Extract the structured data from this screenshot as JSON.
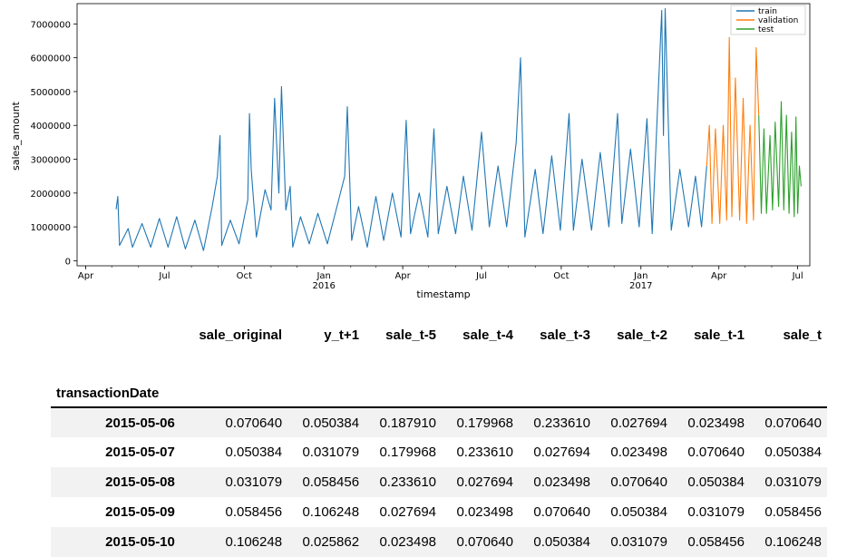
{
  "chart_data": {
    "type": "line",
    "title": "",
    "xlabel": "timestamp",
    "ylabel": "sales_amount",
    "ylim": [
      -150000,
      7600000
    ],
    "y_ticks": [
      0,
      1000000,
      2000000,
      3000000,
      4000000,
      5000000,
      6000000,
      7000000
    ],
    "x_ticks": [
      {
        "date": "2015-04-01",
        "label": "Apr",
        "sub": ""
      },
      {
        "date": "2015-07-01",
        "label": "Jul",
        "sub": ""
      },
      {
        "date": "2015-10-01",
        "label": "Oct",
        "sub": ""
      },
      {
        "date": "2016-01-01",
        "label": "Jan",
        "sub": "2016"
      },
      {
        "date": "2016-04-01",
        "label": "Apr",
        "sub": ""
      },
      {
        "date": "2016-07-01",
        "label": "Jul",
        "sub": ""
      },
      {
        "date": "2016-10-01",
        "label": "Oct",
        "sub": ""
      },
      {
        "date": "2017-01-01",
        "label": "Jan",
        "sub": "2017"
      },
      {
        "date": "2017-04-01",
        "label": "Apr",
        "sub": ""
      },
      {
        "date": "2017-07-01",
        "label": "Jul",
        "sub": ""
      }
    ],
    "xlim": [
      "2015-03-22",
      "2017-07-15"
    ],
    "grid": false,
    "legend_position": "top-right",
    "series": [
      {
        "name": "train",
        "color": "#1f77b4",
        "points": [
          [
            "2015-05-06",
            1520000
          ],
          [
            "2015-05-08",
            1900000
          ],
          [
            "2015-05-10",
            450000
          ],
          [
            "2015-05-20",
            950000
          ],
          [
            "2015-05-25",
            400000
          ],
          [
            "2015-06-05",
            1100000
          ],
          [
            "2015-06-15",
            400000
          ],
          [
            "2015-06-25",
            1250000
          ],
          [
            "2015-07-05",
            400000
          ],
          [
            "2015-07-15",
            1300000
          ],
          [
            "2015-07-25",
            350000
          ],
          [
            "2015-08-05",
            1200000
          ],
          [
            "2015-08-15",
            300000
          ],
          [
            "2015-08-25",
            1600000
          ],
          [
            "2015-08-31",
            2500000
          ],
          [
            "2015-09-03",
            3700000
          ],
          [
            "2015-09-05",
            450000
          ],
          [
            "2015-09-15",
            1200000
          ],
          [
            "2015-09-25",
            500000
          ],
          [
            "2015-10-05",
            1800000
          ],
          [
            "2015-10-07",
            4350000
          ],
          [
            "2015-10-09",
            2700000
          ],
          [
            "2015-10-15",
            700000
          ],
          [
            "2015-10-25",
            2100000
          ],
          [
            "2015-11-01",
            1500000
          ],
          [
            "2015-11-05",
            4800000
          ],
          [
            "2015-11-10",
            2000000
          ],
          [
            "2015-11-13",
            5150000
          ],
          [
            "2015-11-18",
            1500000
          ],
          [
            "2015-11-23",
            2200000
          ],
          [
            "2015-11-26",
            400000
          ],
          [
            "2015-12-05",
            1300000
          ],
          [
            "2015-12-15",
            500000
          ],
          [
            "2015-12-25",
            1400000
          ],
          [
            "2016-01-05",
            500000
          ],
          [
            "2016-01-15",
            1500000
          ],
          [
            "2016-01-25",
            2500000
          ],
          [
            "2016-01-28",
            4550000
          ],
          [
            "2016-02-02",
            600000
          ],
          [
            "2016-02-10",
            1600000
          ],
          [
            "2016-02-20",
            400000
          ],
          [
            "2016-03-01",
            1900000
          ],
          [
            "2016-03-10",
            600000
          ],
          [
            "2016-03-20",
            2000000
          ],
          [
            "2016-03-30",
            700000
          ],
          [
            "2016-04-05",
            4150000
          ],
          [
            "2016-04-10",
            800000
          ],
          [
            "2016-04-20",
            2000000
          ],
          [
            "2016-04-30",
            700000
          ],
          [
            "2016-05-07",
            3900000
          ],
          [
            "2016-05-12",
            800000
          ],
          [
            "2016-05-22",
            2200000
          ],
          [
            "2016-06-01",
            800000
          ],
          [
            "2016-06-10",
            2500000
          ],
          [
            "2016-06-20",
            900000
          ],
          [
            "2016-07-01",
            3800000
          ],
          [
            "2016-07-10",
            1000000
          ],
          [
            "2016-07-20",
            2800000
          ],
          [
            "2016-07-30",
            1000000
          ],
          [
            "2016-08-10",
            3500000
          ],
          [
            "2016-08-15",
            6000000
          ],
          [
            "2016-08-20",
            700000
          ],
          [
            "2016-09-01",
            2700000
          ],
          [
            "2016-09-10",
            800000
          ],
          [
            "2016-09-20",
            3100000
          ],
          [
            "2016-09-30",
            900000
          ],
          [
            "2016-10-10",
            4350000
          ],
          [
            "2016-10-15",
            900000
          ],
          [
            "2016-10-25",
            3000000
          ],
          [
            "2016-11-05",
            900000
          ],
          [
            "2016-11-15",
            3200000
          ],
          [
            "2016-11-25",
            1000000
          ],
          [
            "2016-12-05",
            4350000
          ],
          [
            "2016-12-10",
            1100000
          ],
          [
            "2016-12-20",
            3300000
          ],
          [
            "2016-12-30",
            1000000
          ],
          [
            "2017-01-08",
            4200000
          ],
          [
            "2017-01-14",
            800000
          ],
          [
            "2017-01-25",
            7400000
          ],
          [
            "2017-01-27",
            3700000
          ],
          [
            "2017-01-29",
            7450000
          ],
          [
            "2017-02-05",
            900000
          ],
          [
            "2017-02-15",
            2700000
          ],
          [
            "2017-02-25",
            1000000
          ],
          [
            "2017-03-05",
            2500000
          ],
          [
            "2017-03-12",
            1000000
          ],
          [
            "2017-03-18",
            2800000
          ]
        ]
      },
      {
        "name": "validation",
        "color": "#ff7f0e",
        "points": [
          [
            "2017-03-18",
            2800000
          ],
          [
            "2017-03-21",
            4000000
          ],
          [
            "2017-03-24",
            1100000
          ],
          [
            "2017-03-28",
            3900000
          ],
          [
            "2017-04-02",
            1100000
          ],
          [
            "2017-04-06",
            4000000
          ],
          [
            "2017-04-10",
            1200000
          ],
          [
            "2017-04-13",
            6600000
          ],
          [
            "2017-04-16",
            1300000
          ],
          [
            "2017-04-20",
            5400000
          ],
          [
            "2017-04-25",
            1200000
          ],
          [
            "2017-04-29",
            4800000
          ],
          [
            "2017-05-03",
            1100000
          ],
          [
            "2017-05-07",
            4000000
          ],
          [
            "2017-05-11",
            1200000
          ],
          [
            "2017-05-14",
            6300000
          ],
          [
            "2017-05-17",
            4300000
          ]
        ]
      },
      {
        "name": "test",
        "color": "#2ca02c",
        "points": [
          [
            "2017-05-17",
            4300000
          ],
          [
            "2017-05-20",
            1400000
          ],
          [
            "2017-05-23",
            3900000
          ],
          [
            "2017-05-26",
            1400000
          ],
          [
            "2017-05-30",
            3700000
          ],
          [
            "2017-06-02",
            1500000
          ],
          [
            "2017-06-05",
            4100000
          ],
          [
            "2017-06-09",
            1600000
          ],
          [
            "2017-06-12",
            4700000
          ],
          [
            "2017-06-15",
            1500000
          ],
          [
            "2017-06-18",
            4300000
          ],
          [
            "2017-06-21",
            1400000
          ],
          [
            "2017-06-24",
            3800000
          ],
          [
            "2017-06-27",
            1300000
          ],
          [
            "2017-06-29",
            4250000
          ],
          [
            "2017-07-01",
            1400000
          ],
          [
            "2017-07-03",
            2800000
          ],
          [
            "2017-07-05",
            2200000
          ]
        ]
      }
    ]
  },
  "table": {
    "columns": [
      "sale_original",
      "y_t+1",
      "sale_t-5",
      "sale_t-4",
      "sale_t-3",
      "sale_t-2",
      "sale_t-1",
      "sale_t"
    ],
    "index_name": "transactionDate",
    "rows": [
      {
        "date": "2015-05-06",
        "values": [
          "0.070640",
          "0.050384",
          "0.187910",
          "0.179968",
          "0.233610",
          "0.027694",
          "0.023498",
          "0.070640"
        ]
      },
      {
        "date": "2015-05-07",
        "values": [
          "0.050384",
          "0.031079",
          "0.179968",
          "0.233610",
          "0.027694",
          "0.023498",
          "0.070640",
          "0.050384"
        ]
      },
      {
        "date": "2015-05-08",
        "values": [
          "0.031079",
          "0.058456",
          "0.233610",
          "0.027694",
          "0.023498",
          "0.070640",
          "0.050384",
          "0.031079"
        ]
      },
      {
        "date": "2015-05-09",
        "values": [
          "0.058456",
          "0.106248",
          "0.027694",
          "0.023498",
          "0.070640",
          "0.050384",
          "0.031079",
          "0.058456"
        ]
      },
      {
        "date": "2015-05-10",
        "values": [
          "0.106248",
          "0.025862",
          "0.023498",
          "0.070640",
          "0.050384",
          "0.031079",
          "0.058456",
          "0.106248"
        ]
      }
    ]
  }
}
